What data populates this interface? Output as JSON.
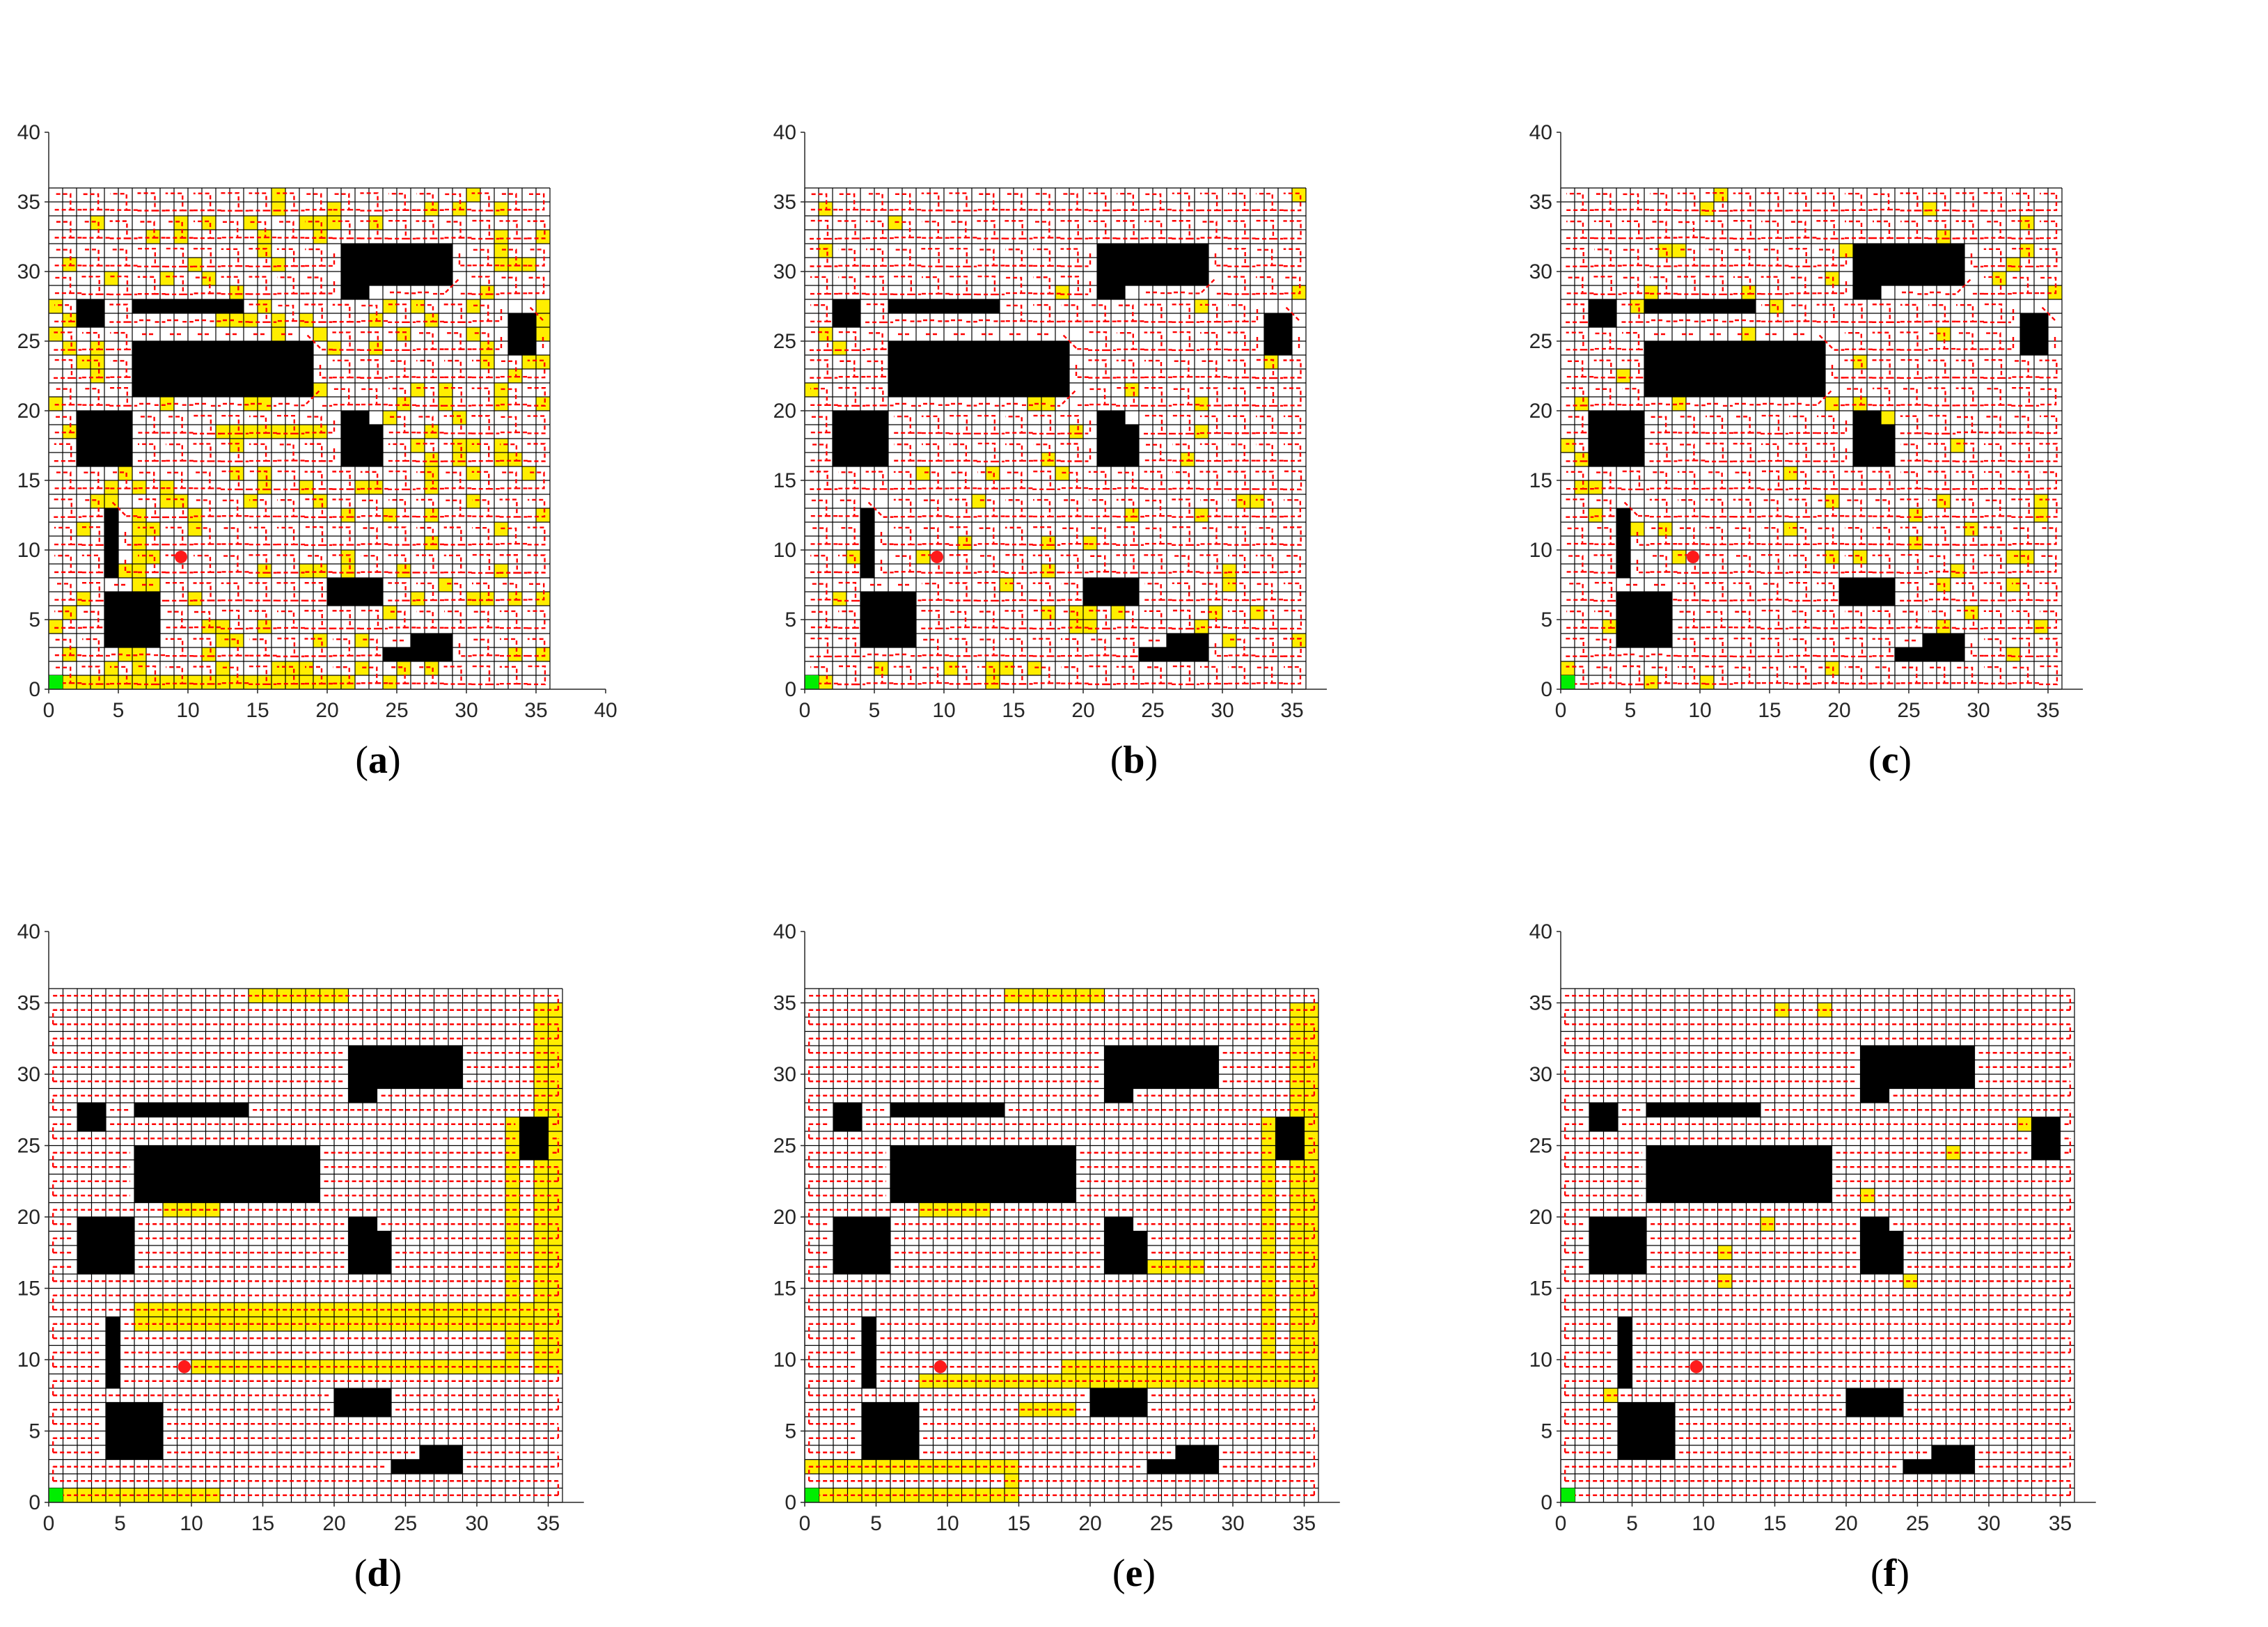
{
  "figure": {
    "x_ticks": [
      "0",
      "5",
      "10",
      "15",
      "20",
      "25",
      "30",
      "35",
      "40"
    ],
    "y_ticks": [
      "0",
      "5",
      "10",
      "15",
      "20",
      "25",
      "30",
      "35",
      "40"
    ],
    "grid_size": 36,
    "axis_limit": 40,
    "colors": {
      "grid": "#000000",
      "path": "#ff0000",
      "highlight": "#ffee00",
      "obstacle": "#000000",
      "start": "#00ee00",
      "target": "#ff1a1a"
    },
    "obstacles": [
      {
        "x0": 2,
        "y0": 26,
        "x1": 4,
        "y1": 28
      },
      {
        "x0": 6,
        "y0": 27,
        "x1": 14,
        "y1": 28
      },
      {
        "x0": 6,
        "y0": 21,
        "x1": 19,
        "y1": 25
      },
      {
        "x0": 2,
        "y0": 16,
        "x1": 6,
        "y1": 20
      },
      {
        "x0": 4,
        "y0": 8,
        "x1": 5,
        "y1": 13
      },
      {
        "x0": 4,
        "y0": 3,
        "x1": 8,
        "y1": 7
      },
      {
        "x0": 21,
        "y0": 29,
        "x1": 29,
        "y1": 32
      },
      {
        "x0": 21,
        "y0": 28,
        "x1": 23,
        "y1": 29
      },
      {
        "x0": 21,
        "y0": 16,
        "x1": 23,
        "y1": 20
      },
      {
        "x0": 23,
        "y0": 16,
        "x1": 24,
        "y1": 19
      },
      {
        "x0": 33,
        "y0": 24,
        "x1": 35,
        "y1": 27
      },
      {
        "x0": 20,
        "y0": 6,
        "x1": 24,
        "y1": 8
      },
      {
        "x0": 24,
        "y0": 2,
        "x1": 29,
        "y1": 3
      },
      {
        "x0": 26,
        "y0": 3,
        "x1": 29,
        "y1": 4
      }
    ],
    "start_point": {
      "x": 0.5,
      "y": 0.5
    },
    "target_point": {
      "x": 9.5,
      "y": 9.5
    }
  },
  "panels": [
    {
      "id": "a",
      "caption_letter": "a",
      "xmax_ticks": 9,
      "path_style": "spiral",
      "highlight": "dense"
    },
    {
      "id": "b",
      "caption_letter": "b",
      "xmax_ticks": 8,
      "path_style": "spiral",
      "highlight": "sparse"
    },
    {
      "id": "c",
      "caption_letter": "c",
      "xmax_ticks": 8,
      "path_style": "spiral",
      "highlight": "sparse"
    },
    {
      "id": "d",
      "caption_letter": "d",
      "xmax_ticks": 8,
      "path_style": "boustrophedon",
      "highlight": "corridors-d"
    },
    {
      "id": "e",
      "caption_letter": "e",
      "xmax_ticks": 8,
      "path_style": "boustrophedon",
      "highlight": "corridors-e"
    },
    {
      "id": "f",
      "caption_letter": "f",
      "xmax_ticks": 8,
      "path_style": "boustrophedon",
      "highlight": "few"
    }
  ]
}
